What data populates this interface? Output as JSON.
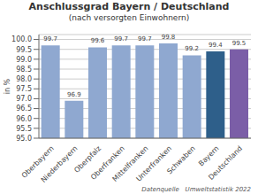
{
  "chart_data": {
    "type": "bar",
    "title": "Anschlussgrad Bayern / Deutschland",
    "subtitle": "(nach versorgten Einwohnern)",
    "categories": [
      "Oberbayern",
      "Niederbayern",
      "Oberpfalz",
      "Oberfranken",
      "Mittelfranken",
      "Unterfranken",
      "Schwaben",
      "Bayern",
      "Deutschland"
    ],
    "values": [
      99.7,
      96.9,
      99.6,
      99.7,
      99.7,
      99.8,
      99.2,
      99.4,
      99.5
    ],
    "colors": [
      "#8fa8d0",
      "#8fa8d0",
      "#8fa8d0",
      "#8fa8d0",
      "#8fa8d0",
      "#8fa8d0",
      "#8fa8d0",
      "#2e5f8a",
      "#7b5ea7"
    ],
    "ylabel": "in %",
    "ylim": [
      95.0,
      100.25
    ],
    "yticks": [
      {
        "value": 95,
        "label": "95.0"
      },
      95.5,
      {
        "value": 96,
        "label": "96.0"
      },
      96.5,
      {
        "value": 97,
        "label": "97.0"
      },
      97.5,
      {
        "value": 98,
        "label": "98.0"
      },
      98.5,
      {
        "value": 99,
        "label": "99.0"
      },
      99.5,
      {
        "value": 100,
        "label": "100.0"
      }
    ],
    "grid": true,
    "data_labels": true,
    "footnote": "Datenquelle   Umweltstatistik 2022"
  }
}
